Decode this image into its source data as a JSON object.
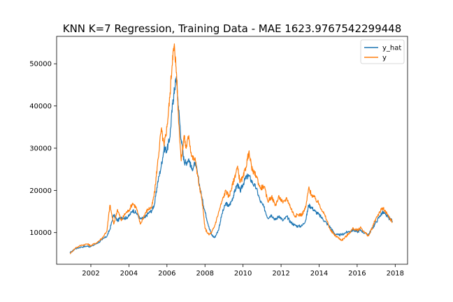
{
  "chart_data": {
    "type": "line",
    "title": "KNN K=7 Regression, Training Data - MAE 1623.9767542299448",
    "xlabel": "",
    "ylabel": "",
    "xlim": [
      2000.2,
      2018.65
    ],
    "ylim": [
      2500,
      56500
    ],
    "grid": false,
    "legend_position": "top-right",
    "x_ticks": [
      2002,
      2004,
      2006,
      2008,
      2010,
      2012,
      2014,
      2016,
      2018
    ],
    "y_ticks": [
      10000,
      20000,
      30000,
      40000,
      50000
    ],
    "series": [
      {
        "name": "y_hat",
        "color": "#1f77b4",
        "x": [
          2000.9,
          2001.2,
          2001.5,
          2001.8,
          2002.0,
          2002.3,
          2002.6,
          2002.85,
          2003.0,
          2003.2,
          2003.4,
          2003.6,
          2003.8,
          2004.0,
          2004.2,
          2004.4,
          2004.6,
          2004.85,
          2005.0,
          2005.2,
          2005.35,
          2005.5,
          2005.7,
          2005.85,
          2006.0,
          2006.15,
          2006.3,
          2006.4,
          2006.5,
          2006.6,
          2006.75,
          2006.9,
          2007.0,
          2007.15,
          2007.3,
          2007.5,
          2007.7,
          2007.85,
          2008.0,
          2008.2,
          2008.35,
          2008.5,
          2008.7,
          2008.9,
          2009.1,
          2009.25,
          2009.4,
          2009.55,
          2009.7,
          2009.85,
          2010.0,
          2010.15,
          2010.3,
          2010.5,
          2010.7,
          2010.9,
          2011.1,
          2011.3,
          2011.5,
          2011.7,
          2011.9,
          2012.1,
          2012.3,
          2012.5,
          2012.7,
          2012.9,
          2013.1,
          2013.3,
          2013.45,
          2013.6,
          2013.8,
          2014.0,
          2014.2,
          2014.4,
          2014.6,
          2014.8,
          2015.0,
          2015.2,
          2015.4,
          2015.6,
          2015.8,
          2016.0,
          2016.2,
          2016.4,
          2016.6,
          2016.8,
          2017.0,
          2017.2,
          2017.35,
          2017.5,
          2017.7,
          2017.85
        ],
        "y": [
          5200,
          6200,
          6600,
          6800,
          6700,
          7400,
          8300,
          9200,
          10800,
          14200,
          12800,
          13700,
          13400,
          13900,
          15300,
          14600,
          13200,
          13500,
          14500,
          15200,
          16800,
          21500,
          25800,
          30000,
          29500,
          32500,
          40500,
          44000,
          47000,
          40000,
          32000,
          27000,
          26500,
          27500,
          25000,
          26500,
          21500,
          18000,
          15000,
          11500,
          9500,
          8800,
          10500,
          14500,
          17000,
          16200,
          17500,
          19500,
          21500,
          19800,
          21500,
          23000,
          23500,
          21800,
          20500,
          17500,
          16000,
          13500,
          14200,
          13000,
          14000,
          12800,
          13800,
          12500,
          11800,
          11500,
          11600,
          13000,
          16500,
          16000,
          15000,
          14200,
          13200,
          12200,
          11200,
          9800,
          9400,
          9500,
          10000,
          10300,
          10600,
          10200,
          10600,
          9800,
          9600,
          11000,
          12500,
          14000,
          14800,
          14200,
          13300,
          12800
        ]
      },
      {
        "name": "y",
        "color": "#ff7f0e",
        "x": [
          2000.9,
          2001.2,
          2001.5,
          2001.8,
          2002.0,
          2002.3,
          2002.6,
          2002.85,
          2003.0,
          2003.2,
          2003.4,
          2003.6,
          2003.8,
          2004.0,
          2004.2,
          2004.4,
          2004.6,
          2004.85,
          2005.0,
          2005.2,
          2005.35,
          2005.5,
          2005.7,
          2005.85,
          2006.0,
          2006.15,
          2006.3,
          2006.4,
          2006.5,
          2006.6,
          2006.75,
          2006.9,
          2007.0,
          2007.15,
          2007.3,
          2007.5,
          2007.7,
          2007.85,
          2008.0,
          2008.2,
          2008.35,
          2008.5,
          2008.7,
          2008.9,
          2009.1,
          2009.25,
          2009.4,
          2009.55,
          2009.7,
          2009.85,
          2010.0,
          2010.15,
          2010.3,
          2010.5,
          2010.7,
          2010.9,
          2011.1,
          2011.3,
          2011.5,
          2011.7,
          2011.9,
          2012.1,
          2012.3,
          2012.5,
          2012.7,
          2012.9,
          2013.1,
          2013.3,
          2013.45,
          2013.6,
          2013.8,
          2014.0,
          2014.2,
          2014.4,
          2014.6,
          2014.8,
          2015.0,
          2015.2,
          2015.4,
          2015.6,
          2015.8,
          2016.0,
          2016.2,
          2016.4,
          2016.6,
          2016.8,
          2017.0,
          2017.2,
          2017.35,
          2017.5,
          2017.7,
          2017.85
        ],
        "y": [
          5000,
          6400,
          7000,
          7300,
          6900,
          7600,
          8700,
          10500,
          16500,
          12000,
          15500,
          12800,
          14500,
          15300,
          17000,
          15800,
          12000,
          14500,
          15500,
          16000,
          19500,
          26000,
          34500,
          30500,
          35000,
          42000,
          52000,
          54000,
          48000,
          38000,
          27000,
          33000,
          30000,
          33000,
          28000,
          27000,
          21000,
          17500,
          11000,
          9500,
          10000,
          11500,
          14500,
          17500,
          20000,
          18500,
          20500,
          23000,
          25500,
          22000,
          23000,
          25500,
          29000,
          24500,
          23500,
          20500,
          21000,
          17500,
          18500,
          16500,
          18500,
          17000,
          18200,
          16000,
          14000,
          14200,
          14300,
          16000,
          20500,
          19000,
          18000,
          16800,
          15000,
          13000,
          10500,
          9500,
          8800,
          8200,
          9000,
          10000,
          11000,
          10500,
          11200,
          10000,
          9200,
          11200,
          13500,
          15000,
          15800,
          14800,
          13500,
          12500
        ]
      }
    ]
  }
}
